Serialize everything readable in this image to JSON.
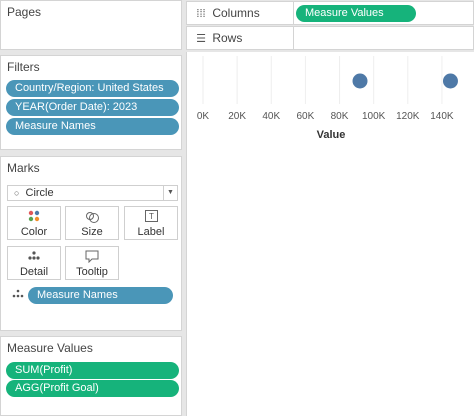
{
  "pages": {
    "title": "Pages"
  },
  "columns_shelf": {
    "label": "Columns",
    "icon": "columns-icon",
    "pill": "Measure Values"
  },
  "rows_shelf": {
    "label": "Rows",
    "icon": "rows-icon"
  },
  "filters": {
    "title": "Filters",
    "items": [
      "Country/Region: United States",
      "YEAR(Order Date): 2023",
      "Measure Names"
    ]
  },
  "marks": {
    "title": "Marks",
    "mark_type": "Circle",
    "buttons": {
      "color": "Color",
      "size": "Size",
      "label": "Label",
      "detail": "Detail",
      "tooltip": "Tooltip"
    },
    "detail_pill": "Measure Names"
  },
  "measure_values": {
    "title": "Measure Values",
    "items": [
      "SUM(Profit)",
      "AGG(Profit Goal)"
    ]
  },
  "colors": {
    "blue_pill": "#4a96b8",
    "green_pill": "#16b37b",
    "mark": "#4e79a7"
  },
  "chart_data": {
    "type": "scatter",
    "x": [
      92000,
      145000
    ],
    "xlabel": "Value",
    "xlim": [
      0,
      150000
    ],
    "xticks": [
      "0K",
      "20K",
      "40K",
      "60K",
      "80K",
      "100K",
      "120K",
      "140K"
    ],
    "xtick_values": [
      0,
      20000,
      40000,
      60000,
      80000,
      100000,
      120000,
      140000
    ],
    "grid": true
  }
}
